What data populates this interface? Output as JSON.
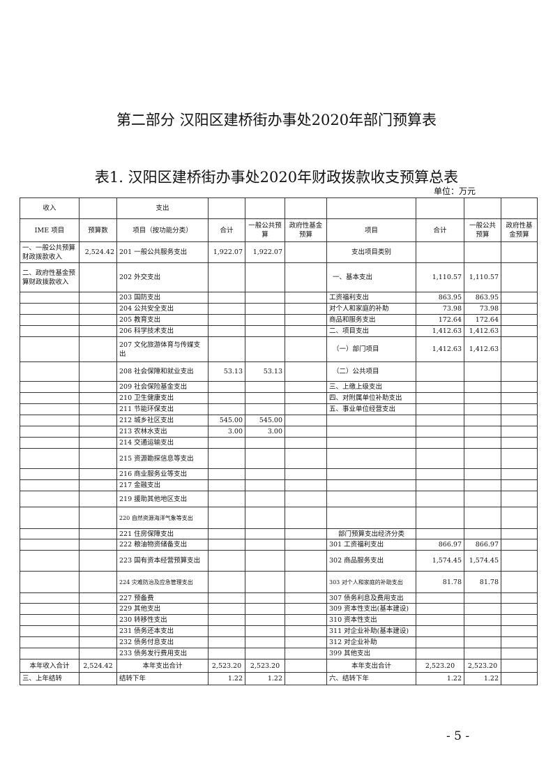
{
  "part_title": "第二部分 汉阳区建桥街办事处2020年部门预算表",
  "table_title": "表1. 汉阳区建桥街办事处2020年财政拨款收支预算总表",
  "unit": "单位：万元",
  "page_number": "- 5 -",
  "header_row1": [
    "收入",
    "",
    "支出",
    "",
    "",
    "",
    "",
    "",
    "",
    ""
  ],
  "header_row2": [
    "IME 项目",
    "预算数",
    "项目（按功能分类）",
    "合计",
    "一般公共预算",
    "政府性基金预算",
    "项目",
    "合计",
    "一般公共预算",
    "政府性基金预算"
  ],
  "rows": [
    [
      "一、一般公共预算财政拨款收入",
      "2,524.42",
      "201 一般公共服务支出",
      "1,922.07",
      "1,922.07",
      "",
      "支出项目类别",
      "",
      "",
      ""
    ],
    [
      "二、政府性基金预算财政拨款收入",
      "",
      "202 外交支出",
      "",
      "",
      "",
      "一、基本支出",
      "1,110.57",
      "1,110.57",
      ""
    ],
    [
      "",
      "",
      "203 国防支出",
      "",
      "",
      "",
      "工资福利支出",
      "863.95",
      "863.95",
      ""
    ],
    [
      "",
      "",
      "204 公共安全支出",
      "",
      "",
      "",
      "对个人和家庭的补助",
      "73.98",
      "73.98",
      ""
    ],
    [
      "",
      "",
      "205 教育支出",
      "",
      "",
      "",
      "商品和服务支出",
      "172.64",
      "172.64",
      ""
    ],
    [
      "",
      "",
      "206 科学技术支出",
      "",
      "",
      "",
      "二、项目支出",
      "1,412.63",
      "1,412.63",
      ""
    ],
    [
      "",
      "",
      "207 文化旅游体育与传媒支出",
      "",
      "",
      "",
      "（一）部门项目",
      "1,412.63",
      "1,412.63",
      ""
    ],
    [
      "",
      "",
      "208 社会保障和就业支出",
      "53.13",
      "53.13",
      "",
      "（二）公共项目",
      "",
      "",
      ""
    ],
    [
      "",
      "",
      "209 社会保险基金支出",
      "",
      "",
      "",
      "三、上缴上级支出",
      "",
      "",
      ""
    ],
    [
      "",
      "",
      "210 卫生健康支出",
      "",
      "",
      "",
      "四、对附属单位补助支出",
      "",
      "",
      ""
    ],
    [
      "",
      "",
      "211 节能环保支出",
      "",
      "",
      "",
      "五、事业单位经营支出",
      "",
      "",
      ""
    ],
    [
      "",
      "",
      "212 城乡社区支出",
      "545.00",
      "545.00",
      "",
      "",
      "",
      "",
      ""
    ],
    [
      "",
      "",
      "213 农林水支出",
      "3.00",
      "3.00",
      "",
      "",
      "",
      "",
      ""
    ],
    [
      "",
      "",
      "214 交通运输支出",
      "",
      "",
      "",
      "",
      "",
      "",
      ""
    ],
    [
      "",
      "",
      "215 资源勘探信息等支出",
      "",
      "",
      "",
      "",
      "",
      "",
      ""
    ],
    [
      "",
      "",
      "216 商业服务业等支出",
      "",
      "",
      "",
      "",
      "",
      "",
      ""
    ],
    [
      "",
      "",
      "217 金融支出",
      "",
      "",
      "",
      "",
      "",
      "",
      ""
    ],
    [
      "",
      "",
      "219 援助其他地区支出",
      "",
      "",
      "",
      "",
      "",
      "",
      ""
    ],
    [
      "",
      "",
      "220 自然资源海洋气象等支出",
      "",
      "",
      "",
      "",
      "",
      "",
      ""
    ],
    [
      "",
      "",
      "221 住房保障支出",
      "",
      "",
      "",
      "部门预算支出经济分类",
      "",
      "",
      ""
    ],
    [
      "",
      "",
      "222 粮油物资储备支出",
      "",
      "",
      "",
      "301 工资福利支出",
      "866.97",
      "866.97",
      ""
    ],
    [
      "",
      "",
      "223 国有资本经营预算支出",
      "",
      "",
      "",
      "302 商品服务支出",
      "1,574.45",
      "1,574.45",
      ""
    ],
    [
      "",
      "",
      "224 灾难防治及应急管理支出",
      "",
      "",
      "",
      "303 对个人和家庭的补助支出",
      "81.78",
      "81.78",
      ""
    ],
    [
      "",
      "",
      "227 预备费",
      "",
      "",
      "",
      "307 债务利息及费用支出",
      "",
      "",
      ""
    ],
    [
      "",
      "",
      "229 其他支出",
      "",
      "",
      "",
      "309 资本性支出(基本建设)",
      "",
      "",
      ""
    ],
    [
      "",
      "",
      "230 转移性支出",
      "",
      "",
      "",
      "310 资本性支出",
      "",
      "",
      ""
    ],
    [
      "",
      "",
      "231 债务还本支出",
      "",
      "",
      "",
      "311 对企业补助(基本建设)",
      "",
      "",
      ""
    ],
    [
      "",
      "",
      "232 债务付息支出",
      "",
      "",
      "",
      "312 对企业补助",
      "",
      "",
      ""
    ],
    [
      "",
      "",
      "233 债务发行费用支出",
      "",
      "",
      "",
      "399 其他支出",
      "",
      "",
      ""
    ],
    [
      "本年收入合计",
      "2,524.42",
      "本年支出合计",
      "2,523.20",
      "2,523.20",
      "",
      "本年支出合计",
      "2,523.20",
      "2,523.20",
      ""
    ],
    [
      "三、上年结转",
      "",
      "结转下年",
      "1.22",
      "1.22",
      "",
      "六、结转下年",
      "1.22",
      "1.22",
      ""
    ]
  ]
}
